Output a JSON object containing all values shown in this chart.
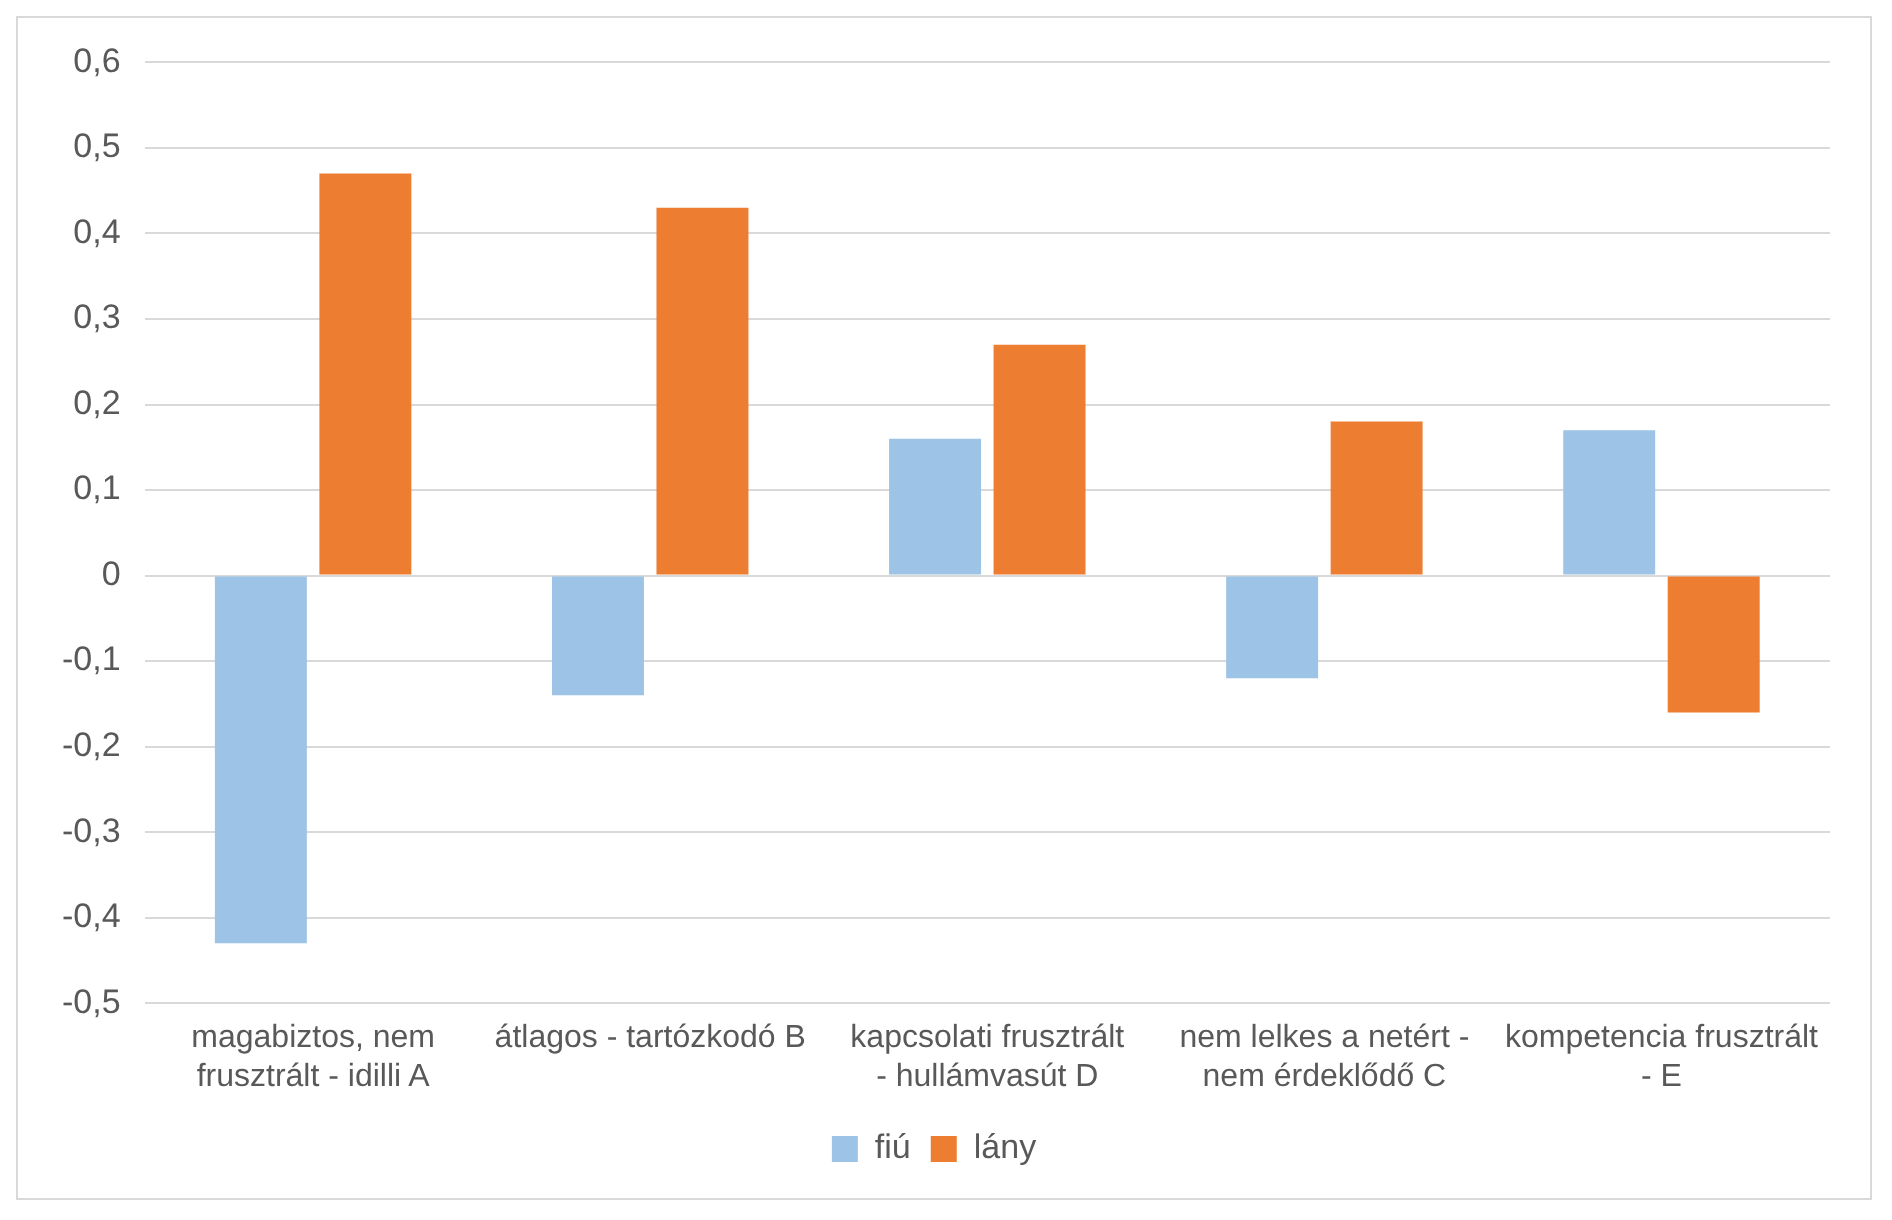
{
  "chart_data": {
    "type": "bar",
    "categories": [
      "magabiztos, nem frusztrált - idilli A",
      "átlagos - tartózkodó B",
      "kapcsolati frusztrált - hullámvasút D",
      "nem lelkes a netért - nem érdeklődő C",
      "kompetencia frusztrált - E"
    ],
    "series": [
      {
        "name": "fiú",
        "color": "#9dc3e6",
        "values": [
          -0.43,
          -0.14,
          0.16,
          -0.12,
          0.17
        ]
      },
      {
        "name": "lány",
        "color": "#ed7d31",
        "values": [
          0.47,
          0.43,
          0.27,
          0.18,
          -0.16
        ]
      }
    ],
    "ylim": [
      -0.5,
      0.6
    ],
    "yticks": [
      {
        "value": -0.5,
        "label": "-0,5"
      },
      {
        "value": -0.4,
        "label": "-0,4"
      },
      {
        "value": -0.3,
        "label": "-0,3"
      },
      {
        "value": -0.2,
        "label": "-0,2"
      },
      {
        "value": -0.1,
        "label": "-0,1"
      },
      {
        "value": 0,
        "label": "0"
      },
      {
        "value": 0.1,
        "label": "0,1"
      },
      {
        "value": 0.2,
        "label": "0,2"
      },
      {
        "value": 0.3,
        "label": "0,3"
      },
      {
        "value": 0.4,
        "label": "0,4"
      },
      {
        "value": 0.5,
        "label": "0,5"
      },
      {
        "value": 0.6,
        "label": "0,6"
      }
    ],
    "grid": "y",
    "legend": "bottom"
  }
}
